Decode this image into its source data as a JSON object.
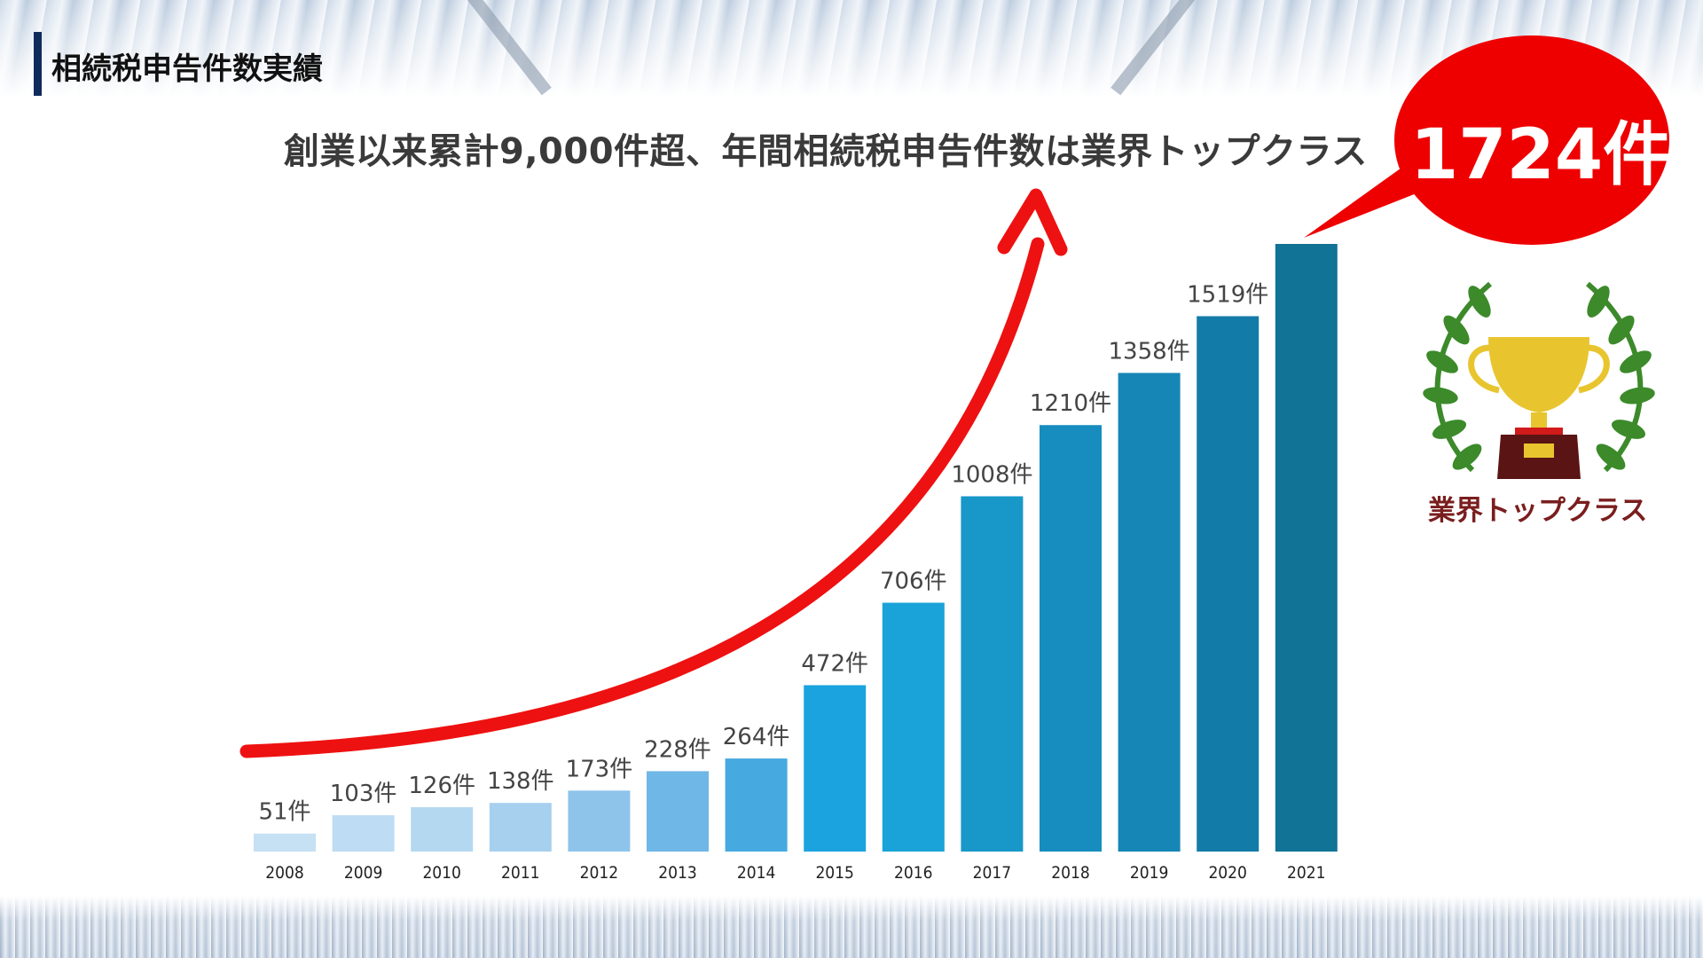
{
  "title": "相続税申告件数実績",
  "headline": "創業以来累計9,000件超、年間相続税申告件数は業界トップクラス",
  "callout": "1724件",
  "trophy_caption": "業界トップクラス",
  "colors": {
    "arrow": "#ee1111",
    "bubble": "#ee0000",
    "title_bar": "#0f2b5b",
    "bar_colors": [
      "#c6e0f4",
      "#bedcf3",
      "#b5d8f1",
      "#a7d0ef",
      "#8ec4ea",
      "#6fb7e6",
      "#46a9e0",
      "#1ba3df",
      "#1aa3d8",
      "#1897c9",
      "#168dbe",
      "#1586b5",
      "#137ba8",
      "#117396"
    ]
  },
  "icons": {
    "trophy": "trophy-icon",
    "laurel": "laurel-wreath-icon"
  },
  "chart_data": {
    "type": "bar",
    "categories": [
      "2008",
      "2009",
      "2010",
      "2011",
      "2012",
      "2013",
      "2014",
      "2015",
      "2016",
      "2017",
      "2018",
      "2019",
      "2020",
      "2021"
    ],
    "values": [
      51,
      103,
      126,
      138,
      173,
      228,
      264,
      472,
      706,
      1008,
      1210,
      1358,
      1519,
      1724
    ],
    "data_labels": [
      "51件",
      "103件",
      "126件",
      "138件",
      "173件",
      "228件",
      "264件",
      "472件",
      "706件",
      "1008件",
      "1210件",
      "1358件",
      "1519件",
      ""
    ],
    "unit": "件",
    "xlabel": "",
    "ylabel": "",
    "ylim": [
      0,
      1724
    ],
    "grid": false,
    "legend": "none"
  }
}
